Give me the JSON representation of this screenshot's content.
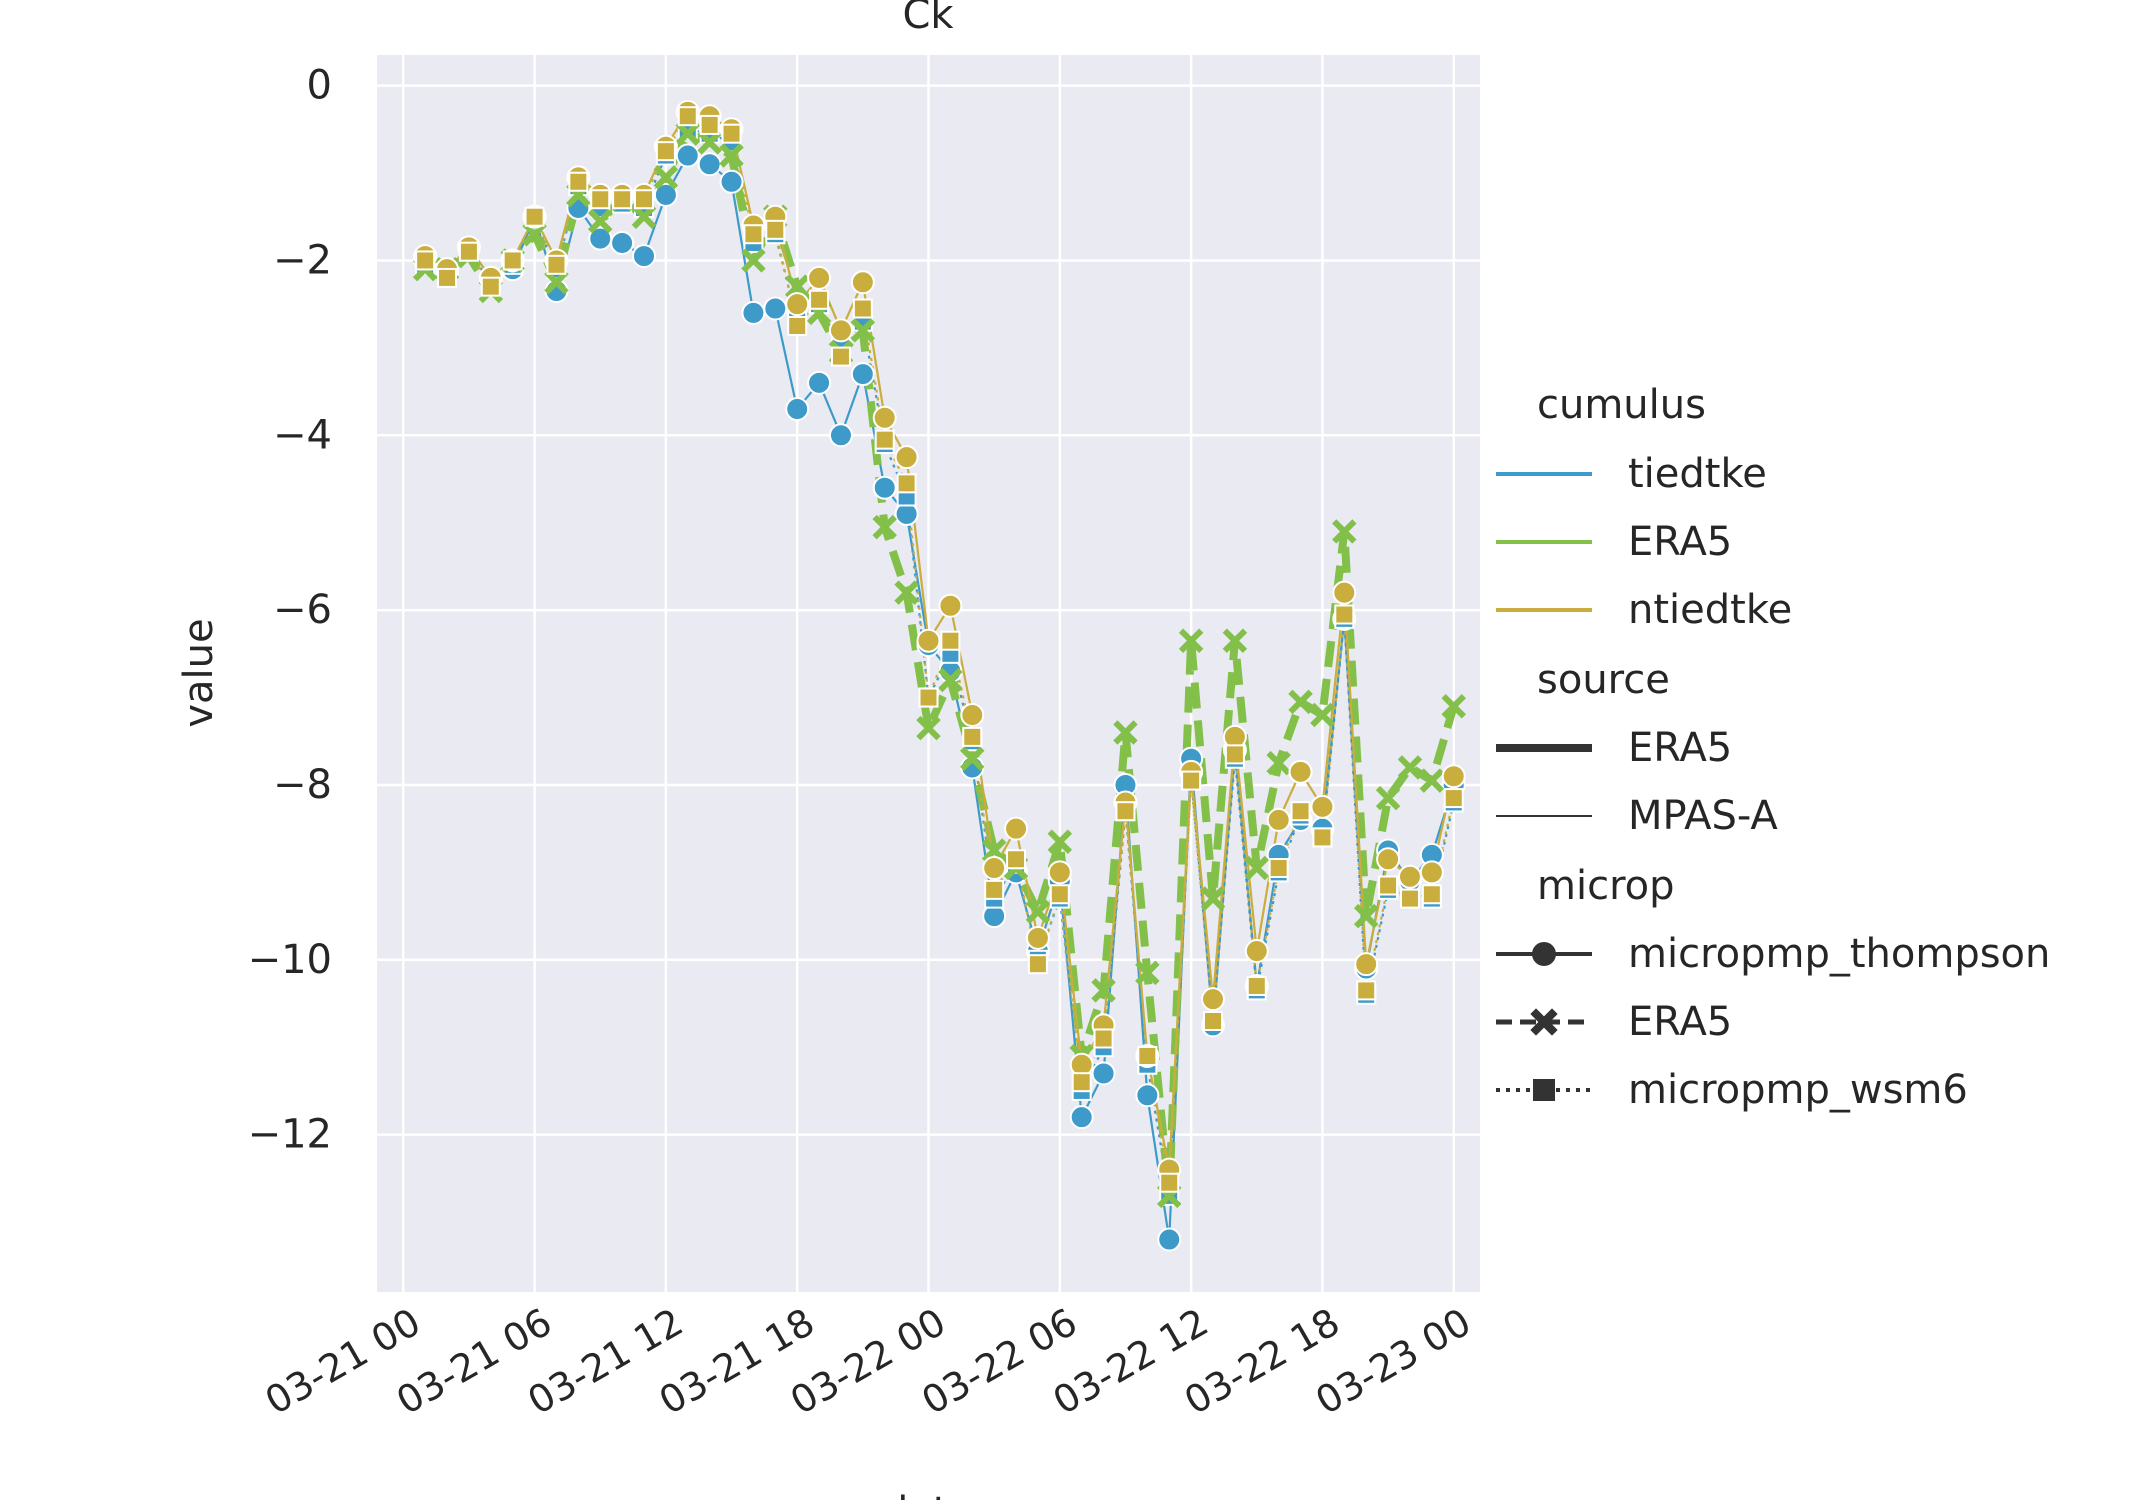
{
  "chart_data": {
    "type": "line",
    "title": "Ck",
    "xlabel": "date",
    "ylabel": "value",
    "x_ticks": [
      "03-21 00",
      "03-21 06",
      "03-21 12",
      "03-21 18",
      "03-22 00",
      "03-22 06",
      "03-22 12",
      "03-22 18",
      "03-23 00"
    ],
    "y_ticks": [
      "0",
      "−2",
      "−4",
      "−6",
      "−8",
      "−10",
      "−12"
    ],
    "y_tick_values": [
      0,
      -2,
      -4,
      -6,
      -8,
      -10,
      -12
    ],
    "xlim_hours": [
      -1.2,
      49.2
    ],
    "ylim": [
      -13.8,
      0.35
    ],
    "grid": true,
    "legend_placement": "right outside",
    "legend": {
      "cumulus_title": "cumulus",
      "cumulus": [
        {
          "label": "tiedtke",
          "color": "#3d9ac9"
        },
        {
          "label": "ERA5",
          "color": "#83c04a"
        },
        {
          "label": "ntiedtke",
          "color": "#c9ad3d"
        }
      ],
      "source_title": "source",
      "source": [
        {
          "label": "ERA5",
          "style": "thick"
        },
        {
          "label": "MPAS-A",
          "style": "thin"
        }
      ],
      "microp_title": "microp",
      "microp": [
        {
          "label": "micropmp_thompson",
          "marker": "circle",
          "dash": "solid"
        },
        {
          "label": "ERA5",
          "marker": "x",
          "dash": "dashed"
        },
        {
          "label": "micropmp_wsm6",
          "marker": "square",
          "dash": "dotted"
        }
      ]
    },
    "x_hours": [
      1,
      2,
      3,
      4,
      5,
      6,
      7,
      8,
      9,
      10,
      11,
      12,
      13,
      14,
      15,
      16,
      17,
      18,
      19,
      20,
      21,
      22,
      23,
      24,
      25,
      26,
      27,
      28,
      29,
      30,
      31,
      32,
      33,
      34,
      35,
      36,
      37,
      38,
      39,
      40,
      41,
      42,
      43,
      44,
      45,
      46,
      47,
      48
    ],
    "series": [
      {
        "cumulus": "tiedtke",
        "source": "MPAS-A",
        "microp": "micropmp_thompson",
        "color": "#3d9ac9",
        "values": [
          -2.0,
          -2.15,
          -1.85,
          -2.2,
          -2.1,
          -1.5,
          -2.35,
          -1.4,
          -1.75,
          -1.8,
          -1.95,
          -1.25,
          -0.8,
          -0.9,
          -1.1,
          -2.6,
          -2.55,
          -3.7,
          -3.4,
          -4.0,
          -3.3,
          -4.6,
          -4.9,
          -6.4,
          -6.7,
          -7.8,
          -9.5,
          -9.0,
          -9.9,
          -9.1,
          -11.8,
          -11.3,
          -8.0,
          -11.55,
          -13.2,
          -7.7,
          -10.75,
          -7.6,
          -10.3,
          -8.8,
          -8.4,
          -8.5,
          -6.1,
          -10.1,
          -8.75,
          -9.1,
          -8.8,
          -8.0
        ]
      },
      {
        "cumulus": "tiedtke",
        "source": "MPAS-A",
        "microp": "micropmp_wsm6",
        "color": "#3d9ac9",
        "values": [
          -2.05,
          -2.2,
          -1.9,
          -2.25,
          -2.05,
          -1.55,
          -2.1,
          -1.15,
          -1.4,
          -1.35,
          -1.4,
          -0.8,
          -0.5,
          -0.55,
          -0.65,
          -1.8,
          -1.7,
          -2.7,
          -2.5,
          -3.0,
          -2.7,
          -4.1,
          -4.7,
          -7.0,
          -6.5,
          -7.5,
          -9.3,
          -8.9,
          -10.0,
          -9.3,
          -11.5,
          -11.0,
          -8.3,
          -11.2,
          -12.7,
          -7.9,
          -10.7,
          -7.7,
          -10.35,
          -9.0,
          -8.35,
          -8.6,
          -6.1,
          -10.4,
          -9.2,
          -9.3,
          -9.3,
          -8.2
        ]
      },
      {
        "cumulus": "ERA5",
        "source": "ERA5",
        "microp": "ERA5",
        "color": "#83c04a",
        "values": [
          -2.1,
          -2.1,
          -1.95,
          -2.35,
          -2.0,
          -1.7,
          -2.25,
          -1.25,
          -1.55,
          -1.3,
          -1.5,
          -1.05,
          -0.55,
          -0.65,
          -0.8,
          -2.0,
          -1.5,
          -2.3,
          -2.6,
          -3.05,
          -2.8,
          -5.05,
          -5.8,
          -7.35,
          -6.8,
          -7.7,
          -8.75,
          -8.95,
          -9.45,
          -8.65,
          -11.1,
          -10.35,
          -7.4,
          -10.15,
          -12.7,
          -6.35,
          -9.3,
          -6.35,
          -8.95,
          -7.75,
          -7.05,
          -7.2,
          -5.1,
          -9.5,
          -8.15,
          -7.8,
          -7.95,
          -7.1
        ]
      },
      {
        "cumulus": "ntiedtke",
        "source": "MPAS-A",
        "microp": "micropmp_thompson",
        "color": "#c9ad3d",
        "values": [
          -1.95,
          -2.1,
          -1.85,
          -2.2,
          -2.0,
          -1.5,
          -2.0,
          -1.05,
          -1.25,
          -1.25,
          -1.25,
          -0.7,
          -0.3,
          -0.35,
          -0.5,
          -1.6,
          -1.5,
          -2.5,
          -2.2,
          -2.8,
          -2.25,
          -3.8,
          -4.25,
          -6.35,
          -5.95,
          -7.2,
          -8.95,
          -8.5,
          -9.75,
          -9.0,
          -11.2,
          -10.75,
          -8.2,
          -11.1,
          -12.4,
          -7.85,
          -10.45,
          -7.45,
          -9.9,
          -8.4,
          -7.85,
          -8.25,
          -5.8,
          -10.05,
          -8.85,
          -9.05,
          -9.0,
          -7.9
        ]
      },
      {
        "cumulus": "ntiedtke",
        "source": "MPAS-A",
        "microp": "micropmp_wsm6",
        "color": "#c9ad3d",
        "values": [
          -2.0,
          -2.2,
          -1.9,
          -2.3,
          -2.0,
          -1.5,
          -2.05,
          -1.1,
          -1.3,
          -1.3,
          -1.3,
          -0.75,
          -0.35,
          -0.45,
          -0.55,
          -1.7,
          -1.65,
          -2.75,
          -2.45,
          -3.1,
          -2.55,
          -4.05,
          -4.55,
          -7.0,
          -6.35,
          -7.45,
          -9.2,
          -8.85,
          -10.05,
          -9.25,
          -11.4,
          -10.9,
          -8.3,
          -11.1,
          -12.55,
          -7.95,
          -10.7,
          -7.65,
          -10.3,
          -8.95,
          -8.3,
          -8.6,
          -6.05,
          -10.35,
          -9.15,
          -9.3,
          -9.25,
          -8.15
        ]
      }
    ]
  }
}
